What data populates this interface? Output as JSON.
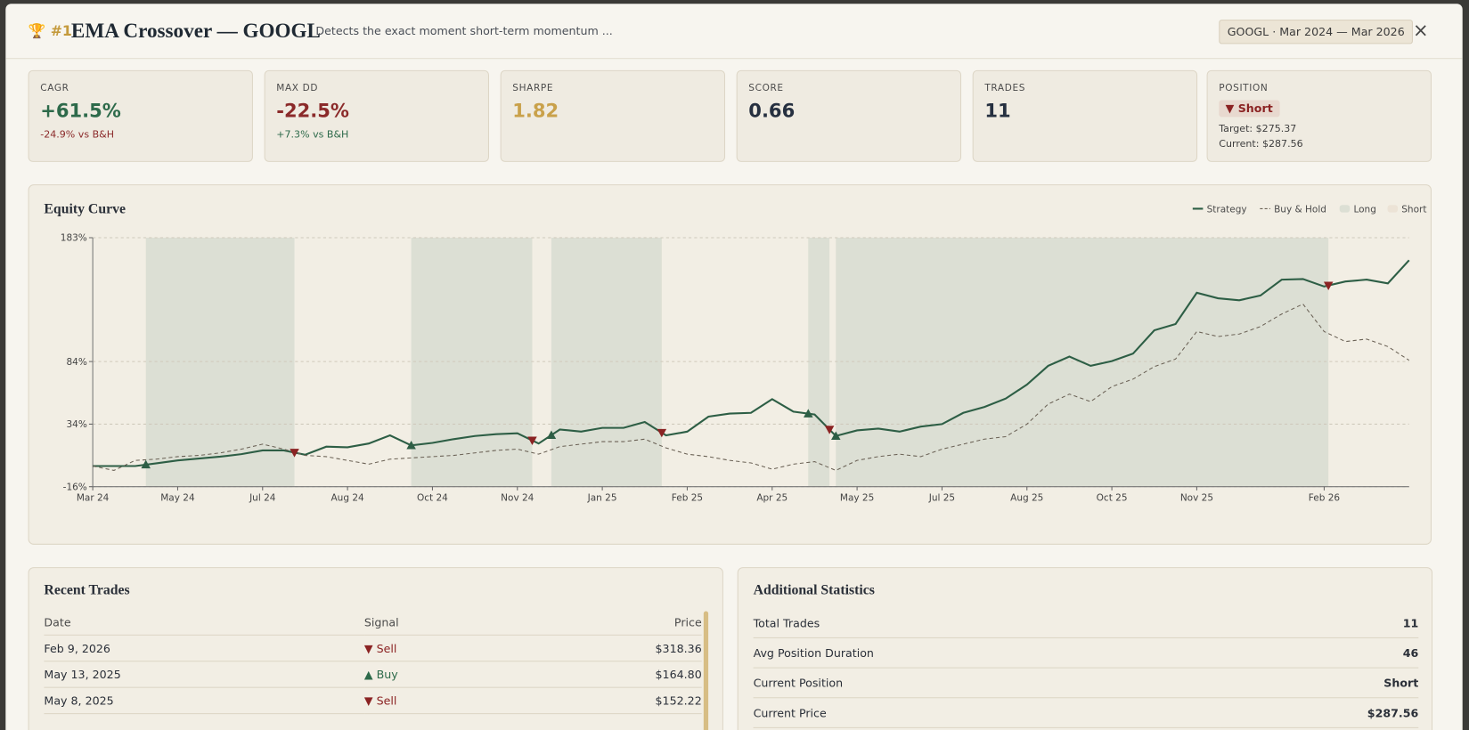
{
  "header": {
    "rank": "#1",
    "title": "EMA Crossover — GOOGL",
    "description": "Detects the exact moment short-term momentum ...",
    "range_badge": "GOOGL · Mar 2024 — Mar 2026",
    "close": "×"
  },
  "stats": [
    {
      "label": "CAGR",
      "value": "+61.5%",
      "sub": "-24.9% vs B&H",
      "tone": "pos",
      "sub_tone": "neg"
    },
    {
      "label": "MAX DD",
      "value": "-22.5%",
      "sub": "+7.3% vs B&H",
      "tone": "neg",
      "sub_tone": "pos"
    },
    {
      "label": "SHARPE",
      "value": "1.82",
      "tone": "gold"
    },
    {
      "label": "SCORE",
      "value": "0.66",
      "tone": "plain"
    },
    {
      "label": "TRADES",
      "value": "11",
      "tone": "plain"
    }
  ],
  "position": {
    "label": "POSITION",
    "badge": "Short",
    "target": "Target: $275.37",
    "current": "Current: $287.56"
  },
  "chart_data": {
    "type": "line",
    "title": "Equity Curve",
    "categories": [
      "Mar 24",
      null,
      null,
      null,
      "May 24",
      null,
      null,
      null,
      "Jul 24",
      null,
      null,
      null,
      "Aug 24",
      null,
      null,
      null,
      "Oct 24",
      null,
      null,
      null,
      "Nov 24",
      null,
      null,
      null,
      "Jan 25",
      null,
      null,
      null,
      "Feb 25",
      null,
      null,
      null,
      "Apr 25",
      null,
      null,
      null,
      "May 25",
      null,
      null,
      null,
      "Jul 25",
      null,
      null,
      null,
      "Aug 25",
      null,
      null,
      null,
      "Oct 25",
      null,
      null,
      null,
      "Nov 25",
      null,
      null,
      null,
      null,
      null,
      "Feb 26",
      null,
      null,
      null,
      null
    ],
    "series": [
      {
        "name": "Strategy",
        "color": "#2d5e45",
        "dash": false,
        "values": [
          0.5,
          0.5,
          0.5,
          2.7,
          5,
          6.5,
          8,
          10,
          13,
          13,
          9.5,
          16,
          15.5,
          18.5,
          25,
          17,
          19,
          22,
          24.5,
          26,
          26.7,
          18.5,
          29.7,
          28,
          31,
          31,
          35.7,
          25,
          28,
          40,
          42.4,
          43,
          54,
          44,
          41.7,
          24.5,
          29,
          30.4,
          28,
          32,
          34,
          43,
          47.7,
          54.4,
          65.6,
          80.6,
          88,
          80.6,
          84.4,
          90.4,
          109,
          114,
          139,
          134.6,
          133,
          136.8,
          149.5,
          150,
          144,
          148,
          149.5,
          146.5,
          165
        ]
      },
      {
        "name": "Buy & Hold",
        "color": "#6b6256",
        "dash": true,
        "values": [
          0.5,
          -3,
          5,
          6,
          8,
          9,
          11,
          14,
          18,
          14,
          9,
          8,
          5,
          2,
          6,
          7,
          8,
          9,
          11,
          13,
          14,
          10,
          16,
          18,
          20,
          20,
          22,
          15,
          10,
          8,
          5,
          3,
          -2,
          2,
          4,
          -3,
          5,
          8,
          10,
          8,
          14,
          18,
          22,
          24,
          34,
          50,
          58,
          52,
          64,
          70,
          80,
          86,
          108,
          104,
          106,
          112,
          122,
          130,
          108,
          100,
          102,
          96,
          85
        ]
      }
    ],
    "long_periods": [
      [
        2.5,
        9.5
      ],
      [
        15,
        20.7
      ],
      [
        21.6,
        26.8
      ],
      [
        33.7,
        34.7
      ],
      [
        35,
        58.2
      ]
    ],
    "legend_regions": [
      {
        "name": "Long",
        "color": "#dcdfd4"
      },
      {
        "name": "Short",
        "color": "#ece3d6"
      }
    ],
    "ylim": [
      -16,
      183
    ],
    "yticks": [
      {
        "value": -16,
        "label": "-16%"
      },
      {
        "value": 34,
        "label": "34%"
      },
      {
        "value": 84,
        "label": "84%"
      },
      {
        "value": 183,
        "label": "183%"
      }
    ],
    "grid": true,
    "buy_color": "#2d5e45",
    "sell_color": "#8b2323"
  },
  "trades": {
    "title": "Recent Trades",
    "columns": [
      "Date",
      "Signal",
      "Price"
    ],
    "rows": [
      [
        "Feb 9, 2026",
        "Sell",
        "$318.36"
      ],
      [
        "May 13, 2025",
        "Buy",
        "$164.80"
      ],
      [
        "May 8, 2025",
        "Sell",
        "$152.22"
      ]
    ]
  },
  "additional": {
    "title": "Additional Statistics",
    "rows": [
      [
        "Total Trades",
        "11"
      ],
      [
        "Avg Position Duration",
        "46"
      ],
      [
        "Current Position",
        "Short"
      ],
      [
        "Current Price",
        "$287.56"
      ]
    ]
  }
}
